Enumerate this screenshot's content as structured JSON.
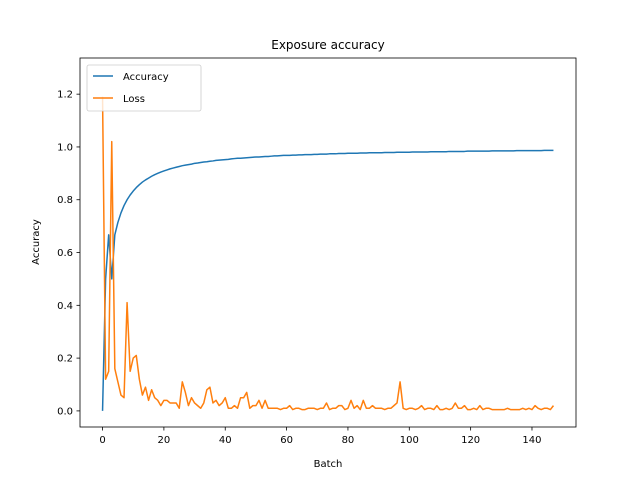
{
  "chart_data": {
    "type": "line",
    "title": "Exposure accuracy",
    "xlabel": "Batch",
    "ylabel": "Accuracy",
    "x": [
      0,
      1,
      2,
      3,
      4,
      5,
      6,
      7,
      8,
      9,
      10,
      11,
      12,
      13,
      14,
      15,
      16,
      17,
      18,
      19,
      20,
      21,
      22,
      23,
      24,
      25,
      26,
      27,
      28,
      29,
      30,
      31,
      32,
      33,
      34,
      35,
      36,
      37,
      38,
      39,
      40,
      41,
      42,
      43,
      44,
      45,
      46,
      47,
      48,
      49,
      50,
      51,
      52,
      53,
      54,
      55,
      56,
      57,
      58,
      59,
      60,
      61,
      62,
      63,
      64,
      65,
      66,
      67,
      68,
      69,
      70,
      71,
      72,
      73,
      74,
      75,
      76,
      77,
      78,
      79,
      80,
      81,
      82,
      83,
      84,
      85,
      86,
      87,
      88,
      89,
      90,
      91,
      92,
      93,
      94,
      95,
      96,
      97,
      98,
      99,
      100,
      101,
      102,
      103,
      104,
      105,
      106,
      107,
      108,
      109,
      110,
      111,
      112,
      113,
      114,
      115,
      116,
      117,
      118,
      119,
      120,
      121,
      122,
      123,
      124,
      125,
      126,
      127,
      128,
      129,
      130,
      131,
      132,
      133,
      134,
      135,
      136,
      137,
      138,
      139,
      140,
      141,
      142,
      143,
      144,
      145,
      146,
      147
    ],
    "series": [
      {
        "name": "Accuracy",
        "color": "#1f77b4",
        "values": [
          0,
          0.5,
          0.667,
          0.5,
          0.667,
          0.714,
          0.75,
          0.778,
          0.8,
          0.818,
          0.833,
          0.846,
          0.857,
          0.867,
          0.875,
          0.882,
          0.889,
          0.895,
          0.9,
          0.905,
          0.909,
          0.913,
          0.917,
          0.92,
          0.923,
          0.926,
          0.929,
          0.931,
          0.933,
          0.935,
          0.938,
          0.939,
          0.941,
          0.943,
          0.944,
          0.946,
          0.947,
          0.949,
          0.95,
          0.951,
          0.952,
          0.953,
          0.955,
          0.956,
          0.957,
          0.957,
          0.958,
          0.959,
          0.96,
          0.961,
          0.962,
          0.962,
          0.963,
          0.964,
          0.964,
          0.965,
          0.966,
          0.966,
          0.967,
          0.968,
          0.968,
          0.968,
          0.969,
          0.969,
          0.97,
          0.97,
          0.971,
          0.971,
          0.971,
          0.972,
          0.972,
          0.973,
          0.973,
          0.973,
          0.974,
          0.974,
          0.974,
          0.975,
          0.975,
          0.975,
          0.976,
          0.976,
          0.976,
          0.976,
          0.977,
          0.977,
          0.977,
          0.978,
          0.978,
          0.978,
          0.978,
          0.978,
          0.979,
          0.979,
          0.979,
          0.979,
          0.98,
          0.98,
          0.98,
          0.98,
          0.98,
          0.981,
          0.981,
          0.981,
          0.981,
          0.981,
          0.981,
          0.982,
          0.982,
          0.982,
          0.982,
          0.982,
          0.982,
          0.983,
          0.983,
          0.983,
          0.983,
          0.983,
          0.983,
          0.984,
          0.984,
          0.984,
          0.984,
          0.984,
          0.984,
          0.984,
          0.984,
          0.985,
          0.985,
          0.985,
          0.985,
          0.985,
          0.985,
          0.985,
          0.985,
          0.986,
          0.986,
          0.986,
          0.986,
          0.986,
          0.986,
          0.986,
          0.986,
          0.986,
          0.987,
          0.987,
          0.987,
          0.987
        ]
      },
      {
        "name": "Loss",
        "color": "#ff7f0e",
        "values": [
          1.19,
          0.12,
          0.15,
          1.02,
          0.16,
          0.11,
          0.06,
          0.05,
          0.41,
          0.15,
          0.2,
          0.21,
          0.12,
          0.06,
          0.09,
          0.04,
          0.08,
          0.05,
          0.04,
          0.02,
          0.04,
          0.04,
          0.03,
          0.03,
          0.03,
          0.01,
          0.11,
          0.07,
          0.02,
          0.05,
          0.03,
          0.02,
          0.01,
          0.03,
          0.08,
          0.09,
          0.03,
          0.04,
          0.02,
          0.03,
          0.05,
          0.01,
          0.01,
          0.02,
          0.01,
          0.05,
          0.05,
          0.07,
          0.01,
          0.02,
          0.02,
          0.04,
          0.01,
          0.04,
          0.01,
          0.01,
          0.01,
          0.01,
          0.005,
          0.01,
          0.01,
          0.02,
          0.005,
          0.01,
          0.01,
          0.005,
          0.005,
          0.01,
          0.01,
          0.01,
          0.005,
          0.01,
          0.01,
          0.03,
          0.005,
          0.01,
          0.01,
          0.02,
          0.02,
          0.005,
          0.01,
          0.04,
          0.01,
          0.02,
          0.005,
          0.04,
          0.01,
          0.01,
          0.02,
          0.01,
          0.01,
          0.01,
          0.005,
          0.01,
          0.01,
          0.02,
          0.03,
          0.11,
          0.01,
          0.005,
          0.01,
          0.01,
          0.005,
          0.01,
          0.02,
          0.005,
          0.01,
          0.01,
          0.005,
          0.02,
          0.005,
          0.005,
          0.01,
          0.005,
          0.01,
          0.03,
          0.01,
          0.01,
          0.02,
          0.005,
          0.005,
          0.01,
          0.005,
          0.02,
          0.005,
          0.01,
          0.01,
          0.005,
          0.005,
          0.005,
          0.005,
          0.005,
          0.01,
          0.005,
          0.005,
          0.005,
          0.005,
          0.01,
          0.005,
          0.01,
          0.005,
          0.02,
          0.01,
          0.005,
          0.01,
          0.01,
          0.005,
          0.02
        ]
      }
    ],
    "xlim": [
      -7.35,
      154.35
    ],
    "ylim": [
      -0.061,
      1.337
    ],
    "xticks": [
      0,
      20,
      40,
      60,
      80,
      100,
      120,
      140
    ],
    "yticks": [
      {
        "value": 0,
        "label": "0.0"
      },
      {
        "value": 0.2,
        "label": "0.2"
      },
      {
        "value": 0.4,
        "label": "0.4"
      },
      {
        "value": 0.6,
        "label": "0.6"
      },
      {
        "value": 0.8,
        "label": "0.8"
      },
      {
        "value": 1,
        "label": "1.0"
      },
      {
        "value": 1.2,
        "label": "1.2"
      }
    ],
    "legend": "upper left"
  }
}
